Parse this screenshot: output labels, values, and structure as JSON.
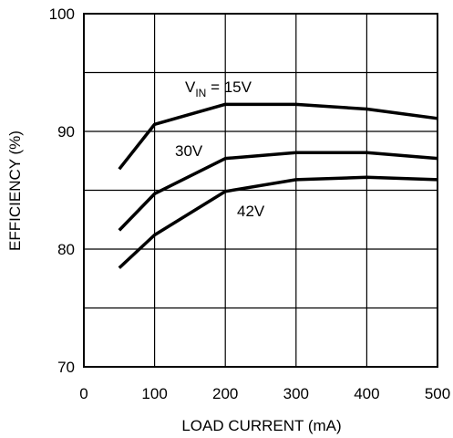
{
  "chart_data": {
    "type": "line",
    "xlabel": "LOAD CURRENT (mA)",
    "ylabel": "EFFICIENCY (%)",
    "xlim": [
      0,
      500
    ],
    "ylim": [
      70,
      100
    ],
    "x_ticks": [
      "0",
      "100",
      "200",
      "300",
      "400",
      "500"
    ],
    "y_ticks": [
      "70",
      "80",
      "90",
      "100"
    ],
    "grid": true,
    "series": [
      {
        "label_main": "V",
        "label_sub": "IN",
        "label_rest": " = 15V",
        "x": [
          50,
          100,
          200,
          300,
          400,
          500
        ],
        "y": [
          86.8,
          90.6,
          92.3,
          92.3,
          91.9,
          91.1
        ]
      },
      {
        "label_main": "30V",
        "x": [
          50,
          100,
          200,
          300,
          400,
          500
        ],
        "y": [
          81.6,
          84.7,
          87.7,
          88.2,
          88.2,
          87.7
        ]
      },
      {
        "label_main": "42V",
        "x": [
          50,
          100,
          200,
          300,
          400,
          500
        ],
        "y": [
          78.4,
          81.2,
          84.9,
          85.9,
          86.1,
          85.9
        ]
      }
    ]
  }
}
